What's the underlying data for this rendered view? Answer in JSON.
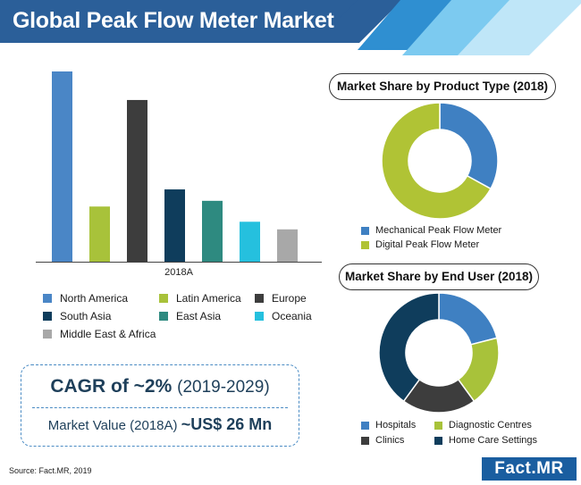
{
  "header": {
    "title": "Global Peak Flow Meter Market"
  },
  "chart_data": [
    {
      "type": "bar",
      "xlabel": "2018A",
      "categories": [
        "North America",
        "Latin America",
        "Europe",
        "South Asia",
        "East Asia",
        "Oceania",
        "Middle East & Africa"
      ],
      "values": [
        100,
        29,
        85,
        38,
        32,
        21,
        17
      ],
      "colors": [
        "#4a86c6",
        "#a8c23a",
        "#3d3d3d",
        "#0f3d5c",
        "#2e8a80",
        "#25c0de",
        "#a8a8a8"
      ],
      "grid": false,
      "legend": [
        {
          "label": "North America",
          "color": "#4a86c6"
        },
        {
          "label": "Latin America",
          "color": "#a8c23a"
        },
        {
          "label": "Europe",
          "color": "#3d3d3d"
        },
        {
          "label": "South Asia",
          "color": "#0f3d5c"
        },
        {
          "label": "East Asia",
          "color": "#2e8a80"
        },
        {
          "label": "Oceania",
          "color": "#25c0de"
        },
        {
          "label": "Middle East & Africa",
          "color": "#a8a8a8"
        }
      ]
    },
    {
      "type": "pie",
      "title": "Market Share by Product Type (2018)",
      "labels": [
        "Mechanical Peak Flow Meter",
        "Digital Peak Flow Meter"
      ],
      "values": [
        33,
        67
      ],
      "colors": [
        "#3f80c2",
        "#b0c335"
      ]
    },
    {
      "type": "pie",
      "title": "Market Share by End User (2018)",
      "labels": [
        "Hospitals",
        "Diagnostic Centres",
        "Clinics",
        "Home Care Settings"
      ],
      "values": [
        21,
        19,
        20,
        40
      ],
      "colors": [
        "#3f80c2",
        "#a8c23a",
        "#3d3d3d",
        "#0f3d5c"
      ]
    }
  ],
  "cagr": {
    "prefix": "CAGR of ",
    "value": "~2%",
    "period": "(2019-2029)"
  },
  "market_value": {
    "label": "Market Value (2018A) ",
    "value": "~US$ 26 Mn"
  },
  "source": "Source: Fact.MR, 2019",
  "logo": "Fact.MR",
  "colors": {
    "brand": "#2b5f99",
    "accent_text": "#1e3f5a"
  }
}
